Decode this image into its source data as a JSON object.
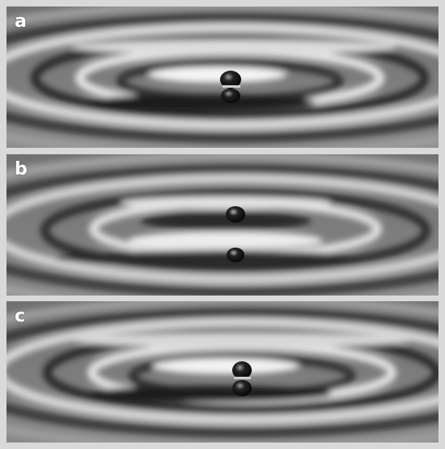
{
  "panels": [
    {
      "label": "a"
    },
    {
      "label": "b"
    },
    {
      "label": "c"
    }
  ],
  "colors": {
    "background": "#d9d9d9",
    "label": "#ffffff",
    "ripple_light": "#f4f4f4",
    "ripple_dark": "#2a2a2a",
    "droplet": "#111111"
  }
}
